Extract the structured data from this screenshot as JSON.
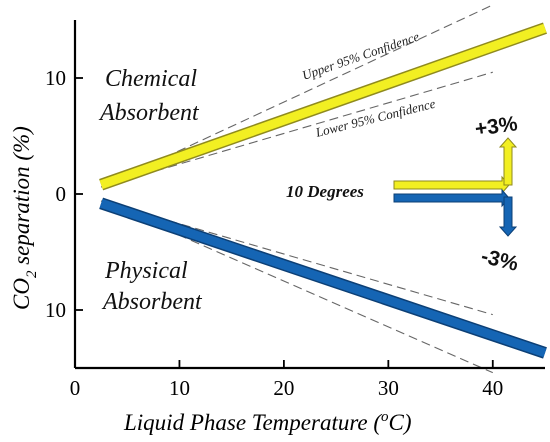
{
  "chart_data": {
    "type": "line",
    "xlabel": "Liquid Phase Temperature (",
    "xlabel_sup": "o",
    "xlabel_end": "C)",
    "ylabel_pre": "CO",
    "ylabel_sub": "2",
    "ylabel_post": " separation (%)",
    "xlim": [
      0,
      45
    ],
    "ylim": [
      -15,
      15
    ],
    "x_ticks": [
      0,
      10,
      20,
      30,
      40
    ],
    "x_tick_labels": [
      "0",
      "10",
      "20",
      "30",
      "40"
    ],
    "y_ticks": [
      10,
      0,
      -10
    ],
    "y_tick_labels": [
      "10",
      "0",
      "10"
    ],
    "series": [
      {
        "name": "Chemical Absorbent",
        "name_line1": "Chemical",
        "name_line2": "Absorbent",
        "color": "#f2ef22",
        "edge": "#8f8a1e",
        "x": [
          2.5,
          45
        ],
        "y": [
          0.8,
          14.3
        ]
      },
      {
        "name": "Physical Absorbent",
        "name_line1": "Physical",
        "name_line2": "Absorbent",
        "color": "#1565b4",
        "edge": "#0c3f75",
        "x": [
          2.5,
          45
        ],
        "y": [
          -0.8,
          -13.7
        ]
      }
    ],
    "confidence_bands": [
      {
        "label": "Upper 95% Confidence",
        "x": [
          2.5,
          40
        ],
        "y": [
          0.6,
          16.3
        ]
      },
      {
        "label": "Lower 95% Confidence",
        "x": [
          2.5,
          40
        ],
        "y": [
          0.6,
          10.5
        ]
      },
      {
        "label": "",
        "x": [
          2.5,
          40
        ],
        "y": [
          -0.6,
          -10.4
        ]
      },
      {
        "label": "",
        "x": [
          2.5,
          40
        ],
        "y": [
          -0.6,
          -15.4
        ]
      }
    ],
    "annotations": {
      "step_label": "10 Degrees",
      "up_label": "+3%",
      "down_label": "-3%"
    }
  }
}
